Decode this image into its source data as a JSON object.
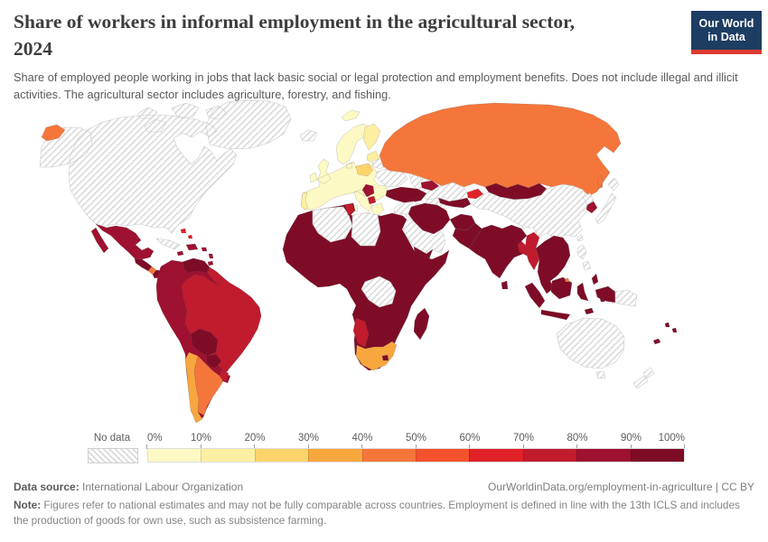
{
  "header": {
    "title_line1": "Share of workers in informal employment in the agricultural sector,",
    "title_line2": "2024",
    "title": "Share of workers in informal employment in the agricultural sector, 2024",
    "subtitle": "Share of employed people working in jobs that lack basic social or legal protection and employment benefits. Does not include illegal and illicit activities. The agricultural sector includes agriculture, forestry, and fishing.",
    "logo": {
      "line1": "Our World",
      "line2": "in Data",
      "bg_color": "#1d3d63",
      "accent_color": "#dc3b30"
    }
  },
  "legend": {
    "no_data_label": "No data",
    "ticks": [
      "0%",
      "10%",
      "20%",
      "30%",
      "40%",
      "50%",
      "60%",
      "70%",
      "80%",
      "90%",
      "100%"
    ]
  },
  "footer": {
    "source_label": "Data source:",
    "source_value": " International Labour Organization",
    "link": "OurWorldinData.org/employment-in-agriculture | CC BY",
    "note_label": "Note:",
    "note_value": " Figures refer to national estimates and may not be fully comparable across countries. Employment is defined in line with the 13th ICLS and includes the production of goods for own use, such as subsistence farming."
  },
  "chart_data": {
    "type": "heatmap",
    "subtype": "world-choropleth",
    "title": "Share of workers in informal employment in the agricultural sector, 2024",
    "unit": "%",
    "legend_position": "bottom",
    "no_data_pattern": "diagonal-hatch",
    "legend_bins": [
      {
        "range": "0-10%",
        "color": "#fdf9c4"
      },
      {
        "range": "10-20%",
        "color": "#fcefa2"
      },
      {
        "range": "20-30%",
        "color": "#fbd46c"
      },
      {
        "range": "30-40%",
        "color": "#f8a63e"
      },
      {
        "range": "40-50%",
        "color": "#f5763b"
      },
      {
        "range": "50-60%",
        "color": "#f4512d"
      },
      {
        "range": "60-70%",
        "color": "#e02128"
      },
      {
        "range": "70-80%",
        "color": "#c11b2e"
      },
      {
        "range": "80-90%",
        "color": "#9e1130"
      },
      {
        "range": "90-100%",
        "color": "#7e0c27"
      }
    ],
    "regions": {
      "usa-canada": {
        "label": "United States, Canada & Greenland",
        "bin": "nd"
      },
      "iceland": {
        "label": "Iceland",
        "bin": "nd"
      },
      "svalbard": {
        "label": "Svalbard (Norway)",
        "bin": 0
      },
      "russia-far-east": {
        "label": "Russia (Chukotka)",
        "bin": 4
      },
      "mexico": {
        "label": "Mexico",
        "bin": 8
      },
      "central-america": {
        "label": "Guatemala, Honduras & Nicaragua",
        "bin": 9
      },
      "costa-rica": {
        "label": "Costa Rica",
        "bin": 4
      },
      "panama": {
        "label": "Panama",
        "bin": 9
      },
      "cuba": {
        "label": "Cuba",
        "bin": "nd"
      },
      "caribbean": {
        "label": "Haiti, Dominican Republic & Caribbean islands",
        "bin": 8
      },
      "bahamas": {
        "label": "Bahamas",
        "bin": 6
      },
      "andes": {
        "label": "Colombia, Ecuador & Peru",
        "bin": 8
      },
      "venezuela": {
        "label": "Venezuela",
        "bin": 9
      },
      "guyanas": {
        "label": "Guyana, Suriname & French Guiana",
        "bin": 7
      },
      "brazil": {
        "label": "Brazil",
        "bin": 7
      },
      "bolivia": {
        "label": "Bolivia",
        "bin": 9
      },
      "paraguay": {
        "label": "Paraguay",
        "bin": 9
      },
      "chile": {
        "label": "Chile",
        "bin": 3
      },
      "argentina": {
        "label": "Argentina",
        "bin": 4
      },
      "uruguay": {
        "label": "Uruguay",
        "bin": 7
      },
      "europe-west": {
        "label": "Western, Northern & Southern Europe",
        "bin": 0
      },
      "finland": {
        "label": "Finland",
        "bin": 1
      },
      "portugal": {
        "label": "Portugal",
        "bin": 1
      },
      "poland": {
        "label": "Poland",
        "bin": 2
      },
      "baltics": {
        "label": "Baltic states",
        "bin": 1
      },
      "moldova": {
        "label": "Moldova",
        "bin": 3
      },
      "serbia": {
        "label": "Serbia",
        "bin": 8
      },
      "albania-macedonia": {
        "label": "Albania & North Macedonia",
        "bin": 7
      },
      "ukraine": {
        "label": "Ukraine",
        "bin": "nd"
      },
      "belarus": {
        "label": "Belarus",
        "bin": "nd"
      },
      "russia": {
        "label": "Russia",
        "bin": 4
      },
      "kazakhstan": {
        "label": "Kazakhstan",
        "bin": "nd"
      },
      "uzbekistan-tajikistan": {
        "label": "Uzbekistan & Tajikistan",
        "bin": 9
      },
      "turkmenistan": {
        "label": "Turkmenistan",
        "bin": "nd"
      },
      "kyrgyzstan": {
        "label": "Kyrgyzstan",
        "bin": 6
      },
      "mongolia": {
        "label": "Mongolia",
        "bin": 9
      },
      "china": {
        "label": "China",
        "bin": "nd"
      },
      "north-korea": {
        "label": "North Korea",
        "bin": "nd"
      },
      "south-korea": {
        "label": "South Korea",
        "bin": 8
      },
      "japan": {
        "label": "Japan",
        "bin": "nd"
      },
      "taiwan": {
        "label": "Taiwan",
        "bin": "nd"
      },
      "turkey": {
        "label": "Turkey",
        "bin": 9
      },
      "caucasus": {
        "label": "Georgia, Armenia & Azerbaijan",
        "bin": 8
      },
      "levant-iraq": {
        "label": "Syria, Iraq, Jordan & Israel",
        "bin": "nd"
      },
      "saudi-gulf": {
        "label": "Saudi Arabia, Oman & Gulf states",
        "bin": "nd"
      },
      "yemen": {
        "label": "Yemen",
        "bin": 9
      },
      "iran": {
        "label": "Iran",
        "bin": 9
      },
      "afghanistan": {
        "label": "Afghanistan",
        "bin": 9
      },
      "pakistan": {
        "label": "Pakistan",
        "bin": 9
      },
      "india": {
        "label": "India & Nepal",
        "bin": 9
      },
      "bangladesh": {
        "label": "Bangladesh",
        "bin": 7
      },
      "sri-lanka": {
        "label": "Sri Lanka",
        "bin": 9
      },
      "myanmar": {
        "label": "Myanmar",
        "bin": 7
      },
      "indochina": {
        "label": "Thailand, Laos, Vietnam, Cambodia & Malaysia",
        "bin": 9
      },
      "indonesia": {
        "label": "Indonesia",
        "bin": 9
      },
      "brunei": {
        "label": "Brunei",
        "bin": 4
      },
      "philippines": {
        "label": "Philippines",
        "bin": "nd"
      },
      "papua-new-guinea": {
        "label": "Papua New Guinea",
        "bin": "nd"
      },
      "africa": {
        "label": "Most of Africa (West, East, Central & Horn)",
        "bin": 9
      },
      "algeria": {
        "label": "Algeria",
        "bin": "nd"
      },
      "libya": {
        "label": "Libya",
        "bin": "nd"
      },
      "tunisia": {
        "label": "Tunisia",
        "bin": 7
      },
      "dr-congo": {
        "label": "Democratic Republic of Congo",
        "bin": "nd"
      },
      "namibia": {
        "label": "Namibia",
        "bin": 7
      },
      "south-africa": {
        "label": "South Africa",
        "bin": 3
      },
      "lesotho": {
        "label": "Lesotho",
        "bin": 9
      },
      "australia": {
        "label": "Australia",
        "bin": "nd"
      },
      "new-zealand": {
        "label": "New Zealand",
        "bin": "nd"
      },
      "pacific-islands": {
        "label": "Fiji, Vanuatu & New Caledonia",
        "bin": 9
      }
    }
  }
}
